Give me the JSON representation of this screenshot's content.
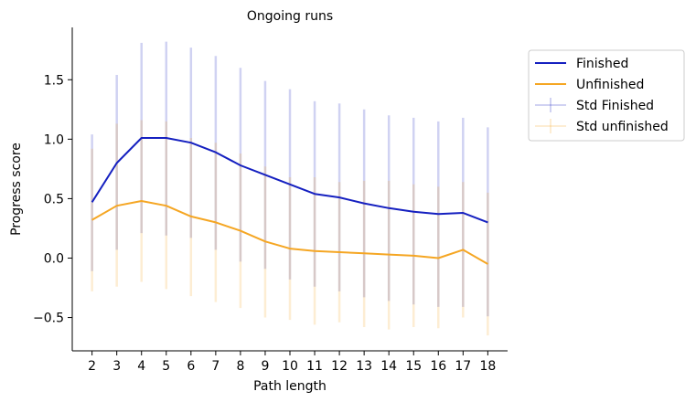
{
  "chart_data": {
    "type": "line",
    "title": "Ongoing runs",
    "xlabel": "Path length",
    "ylabel": "Progress score",
    "x": [
      2,
      3,
      4,
      5,
      6,
      7,
      8,
      9,
      10,
      11,
      12,
      13,
      14,
      15,
      16,
      17,
      18
    ],
    "xticks": [
      "2",
      "3",
      "4",
      "5",
      "6",
      "7",
      "8",
      "9",
      "10",
      "11",
      "12",
      "13",
      "14",
      "15",
      "16",
      "17",
      "18"
    ],
    "yticks": [
      "−0.5",
      "0.0",
      "0.5",
      "1.0",
      "1.5"
    ],
    "ytick_values": [
      -0.5,
      0.0,
      0.5,
      1.0,
      1.5
    ],
    "xlim": [
      1.2,
      18.8
    ],
    "ylim": [
      -0.78,
      1.94
    ],
    "legend_position": "top-right, outside plot",
    "grid": false,
    "series": [
      {
        "name": "Finished",
        "color": "#1520c0",
        "values": [
          0.47,
          0.8,
          1.01,
          1.01,
          0.97,
          0.89,
          0.78,
          0.7,
          0.62,
          0.54,
          0.51,
          0.46,
          0.42,
          0.39,
          0.37,
          0.38,
          0.3
        ],
        "err_low": [
          -0.11,
          0.07,
          0.21,
          0.19,
          0.17,
          0.07,
          -0.03,
          -0.09,
          -0.18,
          -0.24,
          -0.28,
          -0.33,
          -0.36,
          -0.39,
          -0.41,
          -0.41,
          -0.49
        ],
        "err_high": [
          1.04,
          1.54,
          1.81,
          1.82,
          1.77,
          1.7,
          1.6,
          1.49,
          1.42,
          1.32,
          1.3,
          1.25,
          1.2,
          1.18,
          1.15,
          1.18,
          1.1
        ]
      },
      {
        "name": "Unfinished",
        "color": "#f5a623",
        "values": [
          0.32,
          0.44,
          0.48,
          0.44,
          0.35,
          0.3,
          0.23,
          0.14,
          0.08,
          0.06,
          0.05,
          0.04,
          0.03,
          0.02,
          0.0,
          0.07,
          -0.05
        ],
        "err_low": [
          -0.28,
          -0.24,
          -0.2,
          -0.26,
          -0.32,
          -0.37,
          -0.42,
          -0.5,
          -0.52,
          -0.56,
          -0.54,
          -0.58,
          -0.6,
          -0.58,
          -0.59,
          -0.5,
          -0.65
        ],
        "err_high": [
          0.92,
          1.13,
          1.16,
          1.15,
          1.01,
          0.97,
          0.88,
          0.77,
          0.68,
          0.68,
          0.64,
          0.65,
          0.65,
          0.62,
          0.6,
          0.64,
          0.55
        ]
      }
    ],
    "error_series": [
      {
        "name": "Std Finished",
        "color": "#1520c0",
        "of": 0
      },
      {
        "name": "Std unfinished",
        "color": "#f5a623",
        "of": 1
      }
    ]
  }
}
